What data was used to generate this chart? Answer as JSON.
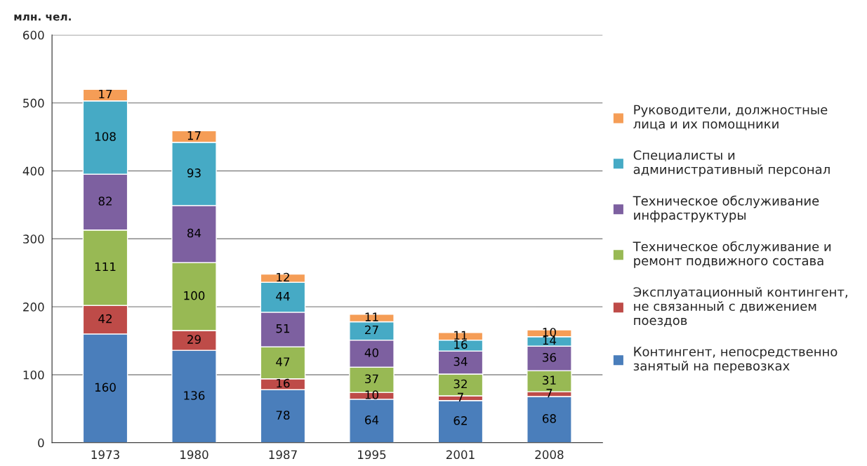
{
  "chart_data": {
    "type": "bar",
    "ylabel": "млн. чел.",
    "categories": [
      "1973",
      "1980",
      "1987",
      "1995",
      "2001",
      "2008"
    ],
    "stacked": true,
    "data_labels": true,
    "grid": "y",
    "legend": "right",
    "ylim": [
      0,
      600
    ],
    "yticks": [
      0,
      100,
      200,
      300,
      400,
      500,
      600
    ],
    "series": [
      {
        "name": "Контингент, непосредственно\nзанятый на перевозках",
        "color": "#4a7ebb",
        "values": [
          160,
          136,
          78,
          64,
          62,
          68
        ]
      },
      {
        "name": "Эксплуатационный контингент,\nне связанный с движением\nпоездов",
        "color": "#be4b48",
        "values": [
          42,
          29,
          16,
          10,
          7,
          7
        ]
      },
      {
        "name": "Техническое обслуживание и\nремонт подвижного состава",
        "color": "#98b954",
        "values": [
          111,
          100,
          47,
          37,
          32,
          31
        ]
      },
      {
        "name": "Техническое обслуживание\nинфраструктуры",
        "color": "#7d60a0",
        "values": [
          82,
          84,
          51,
          40,
          34,
          36
        ]
      },
      {
        "name": "Специалисты и\nадминистративный персонал",
        "color": "#46aac5",
        "values": [
          108,
          93,
          44,
          27,
          16,
          14
        ]
      },
      {
        "name": "Руководители, должностные\nлица и их помощники",
        "color": "#f59d56",
        "values": [
          17,
          17,
          12,
          11,
          11,
          10
        ]
      }
    ]
  }
}
